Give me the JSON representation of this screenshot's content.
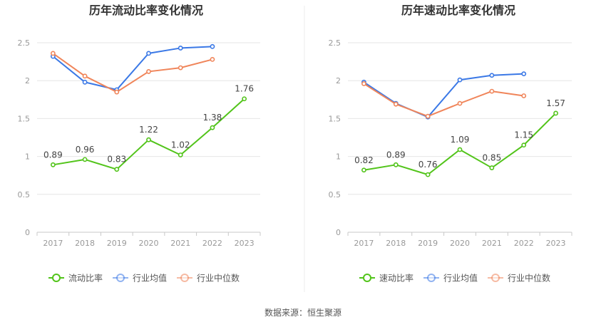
{
  "source": "数据来源：恒生聚源",
  "chart_data": [
    {
      "type": "line",
      "title": "历年流动比率变化情况",
      "x": [
        "2017",
        "2018",
        "2019",
        "2020",
        "2021",
        "2022",
        "2023"
      ],
      "ylim": [
        0,
        2.5
      ],
      "yticks": [
        "0",
        "0.5",
        "1",
        "1.5",
        "2",
        "2.5"
      ],
      "series": [
        {
          "name": "流动比率",
          "color": "#52c41a",
          "values": [
            0.89,
            0.96,
            0.83,
            1.22,
            1.02,
            1.38,
            1.76
          ],
          "labels": [
            "0.89",
            "0.96",
            "0.83",
            "1.22",
            "1.02",
            "1.38",
            "1.76"
          ]
        },
        {
          "name": "行业均值",
          "color": "#3a78e6",
          "values": [
            2.32,
            1.98,
            1.88,
            2.36,
            2.43,
            2.45,
            null
          ]
        },
        {
          "name": "行业中位数",
          "color": "#f0855a",
          "values": [
            2.36,
            2.06,
            1.85,
            2.12,
            2.17,
            2.28,
            null
          ]
        }
      ]
    },
    {
      "type": "line",
      "title": "历年速动比率变化情况",
      "x": [
        "2017",
        "2018",
        "2019",
        "2020",
        "2021",
        "2022",
        "2023"
      ],
      "ylim": [
        0,
        2.5
      ],
      "yticks": [
        "0",
        "0.5",
        "1",
        "1.5",
        "2",
        "2.5"
      ],
      "series": [
        {
          "name": "速动比率",
          "color": "#52c41a",
          "values": [
            0.82,
            0.89,
            0.76,
            1.09,
            0.85,
            1.15,
            1.57
          ],
          "labels": [
            "0.82",
            "0.89",
            "0.76",
            "1.09",
            "0.85",
            "1.15",
            "1.57"
          ]
        },
        {
          "name": "行业均值",
          "color": "#3a78e6",
          "values": [
            1.98,
            1.7,
            1.52,
            2.01,
            2.07,
            2.09,
            null
          ]
        },
        {
          "name": "行业中位数",
          "color": "#f0855a",
          "values": [
            1.96,
            1.69,
            1.53,
            1.7,
            1.86,
            1.8,
            null
          ]
        }
      ]
    }
  ]
}
